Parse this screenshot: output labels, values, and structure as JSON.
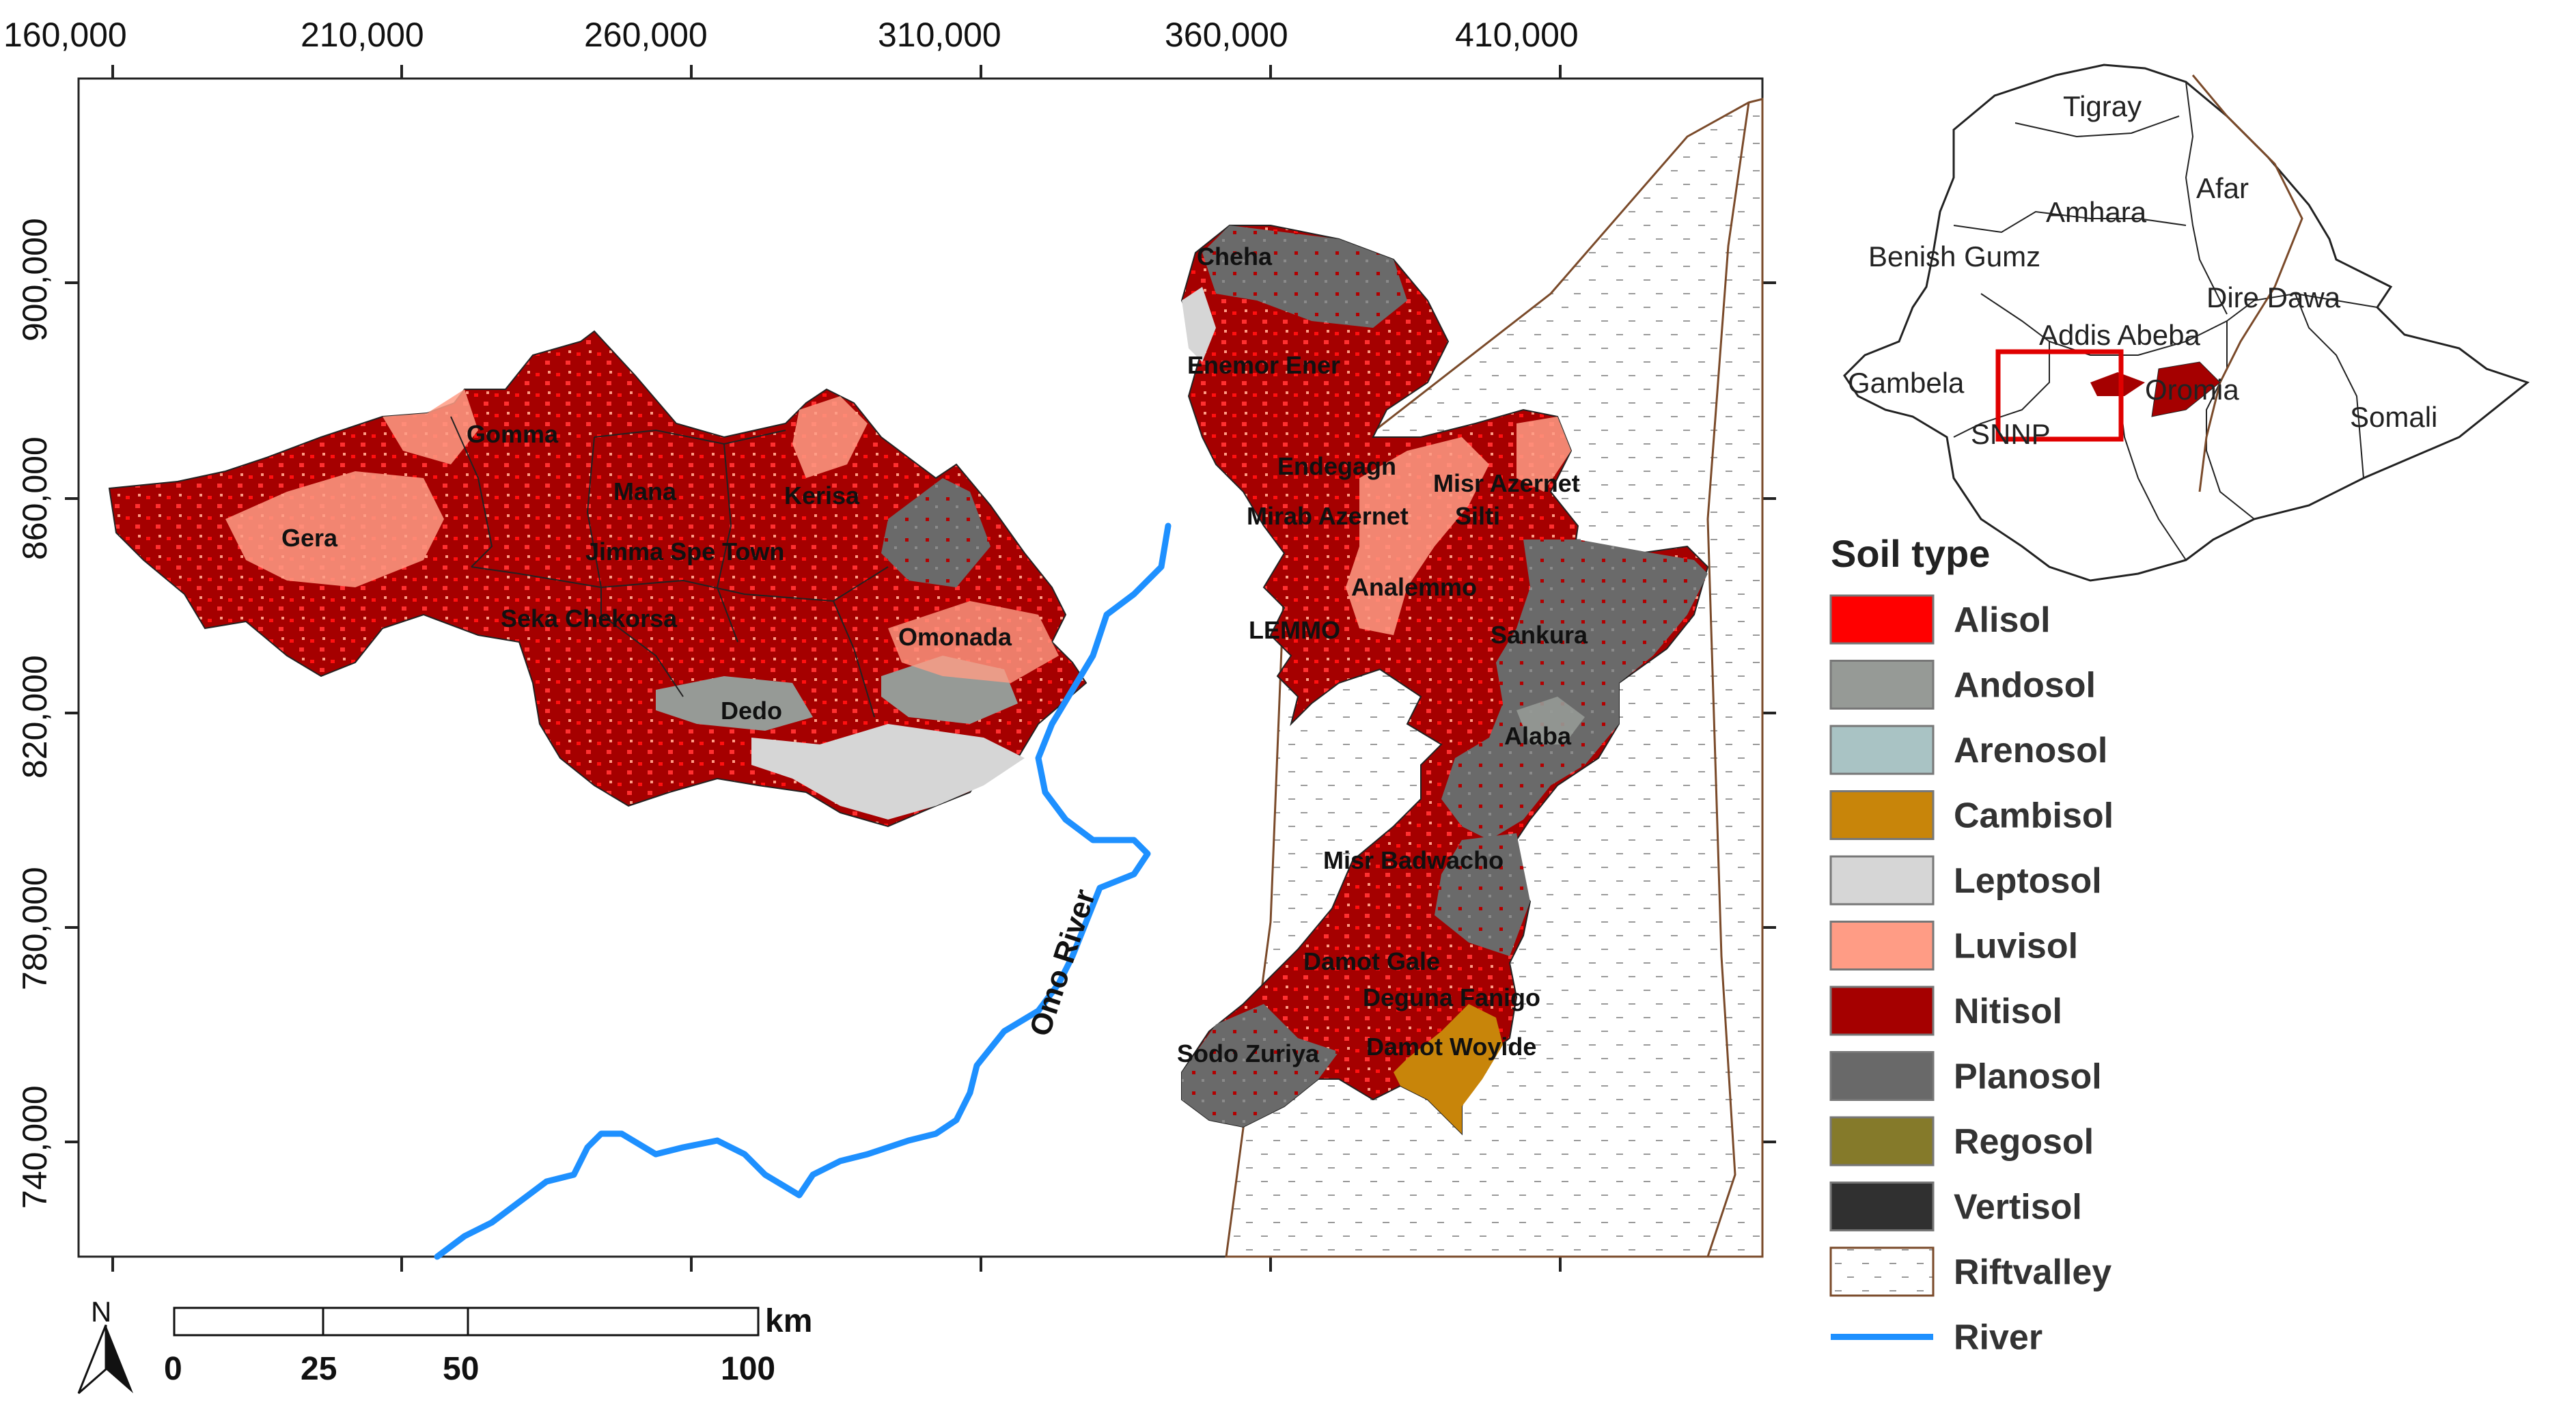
{
  "axes": {
    "x_ticks": [
      "160,000",
      "210,000",
      "260,000",
      "310,000",
      "360,000",
      "410,000"
    ],
    "y_ticks": [
      "900,000",
      "860,000",
      "820,000",
      "780,000",
      "740,000"
    ]
  },
  "places": {
    "gera": "Gera",
    "gomma": "Gomma",
    "mana": "Mana",
    "kerisa": "Kerisa",
    "jimma": "Jimma Spe Town",
    "seka": "Seka Chekorsa",
    "omonada": "Omonada",
    "dedo": "Dedo",
    "cheha": "Cheha",
    "enemor": "Enemor Ener",
    "endegagn": "Endegagn",
    "misrazernet": "Misr Azernet",
    "mirab": "Mirab Azernet",
    "silti": "Silti",
    "analemmo": "Analemmo",
    "lemmo": "LEMMO",
    "sankura": "Sankura",
    "alaba": "Alaba",
    "badwacho": "Misr Badwacho",
    "damotgale": "Damot Gale",
    "deguna": "Deguna Fanigo",
    "sodo": "Sodo Zuriya",
    "woyide": "Damot Woyide"
  },
  "river_label": "Omo River",
  "inset": {
    "regions": {
      "tigray": "Tigray",
      "afar": "Afar",
      "amhara": "Amhara",
      "benishangul": "Benish Gumz",
      "diredawa": "Dire Dawa",
      "addis": "Addis Abeba",
      "gambela": "Gambela",
      "oromia": "Oromia",
      "somali": "Somali",
      "snnp": "SNNP"
    }
  },
  "legend": {
    "title": "Soil type",
    "items": [
      {
        "label": "Alisol",
        "color": "#ff0000"
      },
      {
        "label": "Andosol",
        "color": "#969a96"
      },
      {
        "label": "Arenosol",
        "color": "#a9c3c4"
      },
      {
        "label": "Cambisol",
        "color": "#c8850a"
      },
      {
        "label": "Leptosol",
        "color": "#d6d6d6"
      },
      {
        "label": "Luvisol",
        "color": "#ff9c85"
      },
      {
        "label": "Nitisol",
        "color": "#a50000"
      },
      {
        "label": "Planosol",
        "color": "#696969"
      },
      {
        "label": "Regosol",
        "color": "#857a2a"
      },
      {
        "label": "Vertisol",
        "color": "#303030"
      },
      {
        "label": "Riftvalley",
        "color": "#ffffff"
      },
      {
        "label": "River",
        "color": "#1e90ff"
      }
    ]
  },
  "scale_bar": {
    "unit": "km",
    "labels": [
      "0",
      "25",
      "50",
      "100"
    ]
  },
  "north_arrow": {
    "label": "N"
  }
}
